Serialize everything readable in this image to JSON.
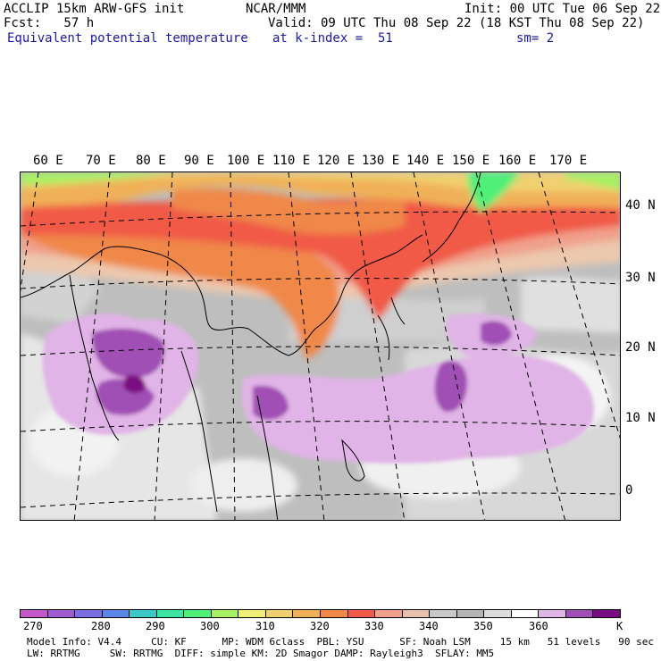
{
  "header": {
    "line1_left": "ACCLIP 15km ARW-GFS init",
    "line1_mid": "NCAR/MMM",
    "line1_right": "Init: 00 UTC Tue 06 Sep 22",
    "line2_left": "Fcst:   57 h",
    "line2_right": "Valid: 09 UTC Thu 08 Sep 22 (18 KST Thu 08 Sep 22)",
    "field": "Equivalent potential temperature",
    "level": "at k-index =  51",
    "smooth": "sm= 2"
  },
  "map": {
    "lon_labels": [
      "60 E",
      "70 E",
      "80 E",
      "90 E",
      "100 E",
      "110 E",
      "120 E",
      "130 E",
      "140 E",
      "150 E",
      "160 E",
      "170 E"
    ],
    "lat_labels": [
      "40 N",
      "30 N",
      "20 N",
      "10 N",
      "0"
    ]
  },
  "colorbar": {
    "colors": [
      "#c458c8",
      "#a05ad2",
      "#7a6ee0",
      "#5a86e8",
      "#3cc8c8",
      "#3ce6a0",
      "#50f078",
      "#a6f064",
      "#f0f078",
      "#f0d070",
      "#f0b058",
      "#f08848",
      "#f05a46",
      "#f0a08c",
      "#e6c0a8",
      "#c8c8c8",
      "#b4b4b4",
      "#dcdcdc",
      "#ffffff",
      "#e0b4e6",
      "#a050b4",
      "#7a0a82"
    ],
    "labels": [
      "270",
      "280",
      "290",
      "300",
      "310",
      "320",
      "330",
      "340",
      "350",
      "360",
      "K"
    ]
  },
  "footer": {
    "line1": "Model Info: V4.4     CU: KF      MP: WDM 6class  PBL: YSU      SF: Noah LSM     15 km   51 levels   90 sec",
    "line2": "LW: RRTMG     SW: RRTMG  DIFF: simple KM: 2D Smagor DAMP: Rayleigh3  SFLAY: MM5"
  }
}
